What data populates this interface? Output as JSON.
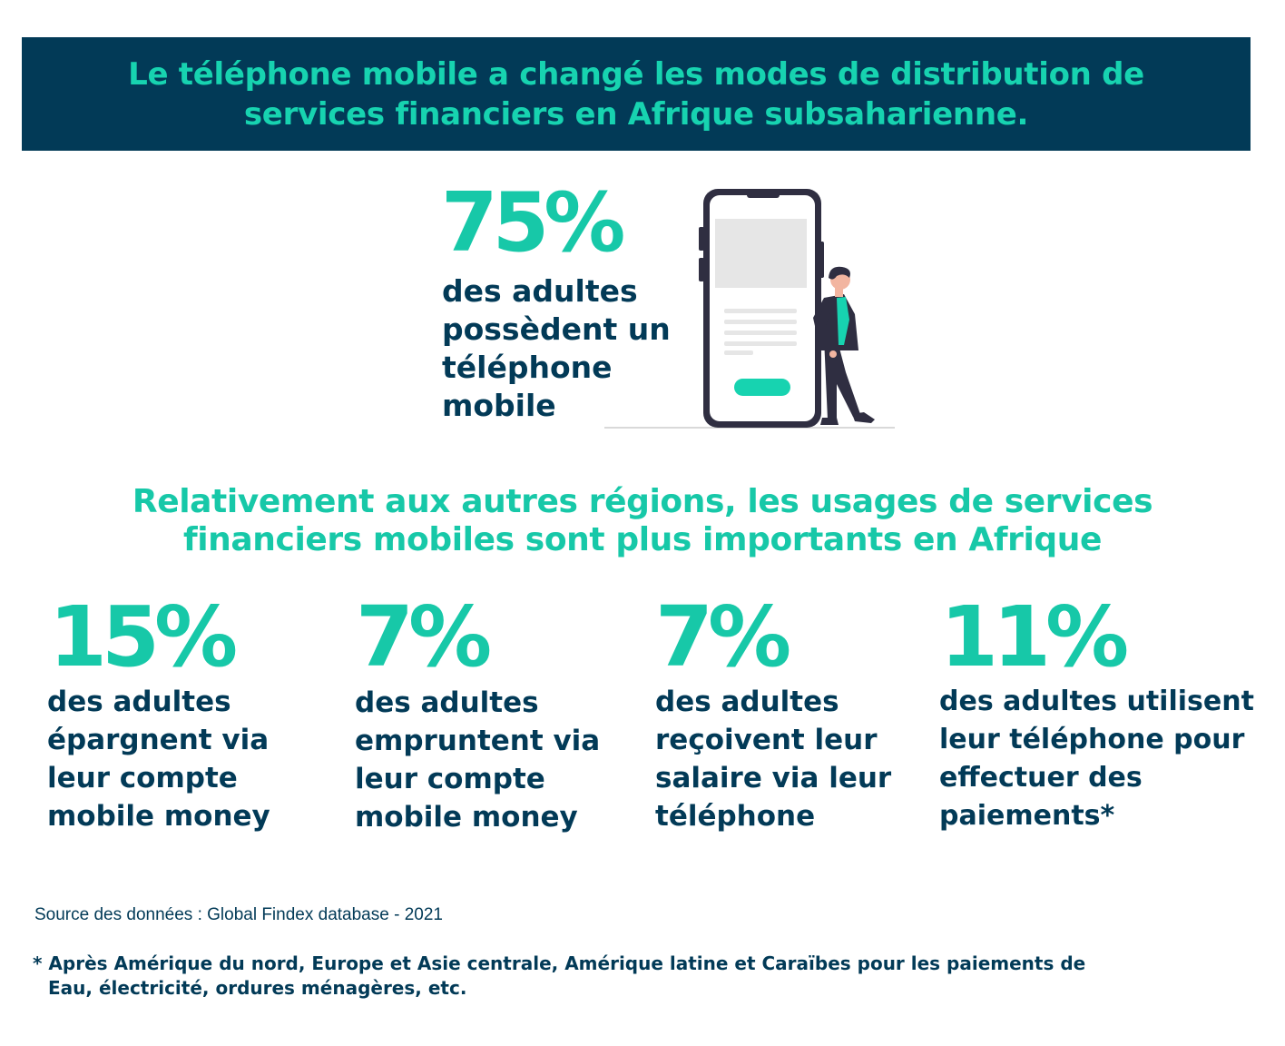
{
  "header": {
    "line1": "Le téléphone mobile a changé les modes de distribution de",
    "line2": "services financiers en Afrique subsaharienne."
  },
  "hero": {
    "value": "75%",
    "lines": [
      "des adultes",
      "possèdent un",
      "téléphone",
      "mobile"
    ]
  },
  "subheading": {
    "line1": "Relativement aux autres régions,  les usages de services",
    "line2": "financiers mobiles sont plus importants en Afrique"
  },
  "stats": [
    {
      "value": "15%",
      "lines": [
        "des adultes",
        "épargnent via",
        "leur compte",
        "mobile money"
      ]
    },
    {
      "value": "7%",
      "lines": [
        "des adultes",
        "empruntent via",
        "leur compte",
        "mobile money"
      ]
    },
    {
      "value": "7%",
      "lines": [
        "des adultes",
        "reçoivent leur",
        "salaire via leur",
        "téléphone"
      ]
    },
    {
      "value": "11%",
      "lines": [
        "des adultes utilisent",
        "leur téléphone pour",
        "effectuer des",
        "paiements*"
      ]
    }
  ],
  "source": "Source des données : Global Findex database - 2021",
  "footnote": {
    "line1": "* Après Amérique du nord, Europe et Asie centrale, Amérique latine et Caraïbes pour les paiements de",
    "line2": "Eau, électricité, ordures ménagères, etc."
  },
  "colors": {
    "navy": "#023a57",
    "teal": "#17c8a8",
    "banner_text": "#17d3b0"
  },
  "illustration": {
    "icon": "person-with-phone-illustration"
  }
}
